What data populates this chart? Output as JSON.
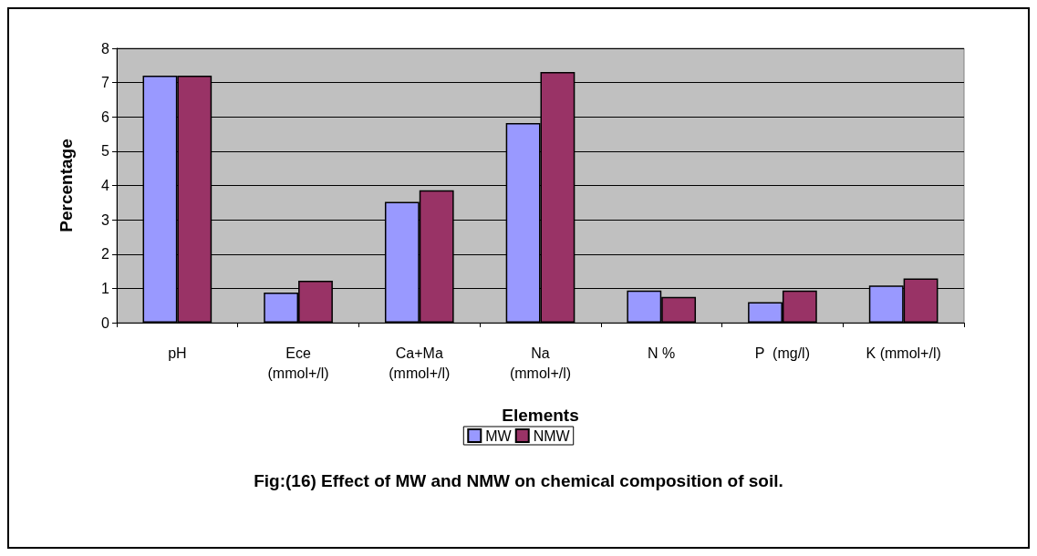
{
  "chart_data": {
    "type": "bar",
    "title": "Fig:(16) Effect of MW and NMW on chemical composition of soil.",
    "xlabel": "Elements",
    "ylabel": "Percentage",
    "categories": [
      "pH",
      "Ece\n(mmol+/l)",
      "Ca+Ma\n(mmol+/l)",
      "Na\n(mmol+/l)",
      "N %",
      "P  (mg/l)",
      "K (mmol+/l)"
    ],
    "series": [
      {
        "name": "MW",
        "color": "#9999ff",
        "values": [
          7.2,
          0.88,
          3.52,
          5.82,
          0.94,
          0.6,
          1.08
        ]
      },
      {
        "name": "NMW",
        "color": "#993366",
        "values": [
          7.2,
          1.22,
          3.86,
          7.31,
          0.75,
          0.94,
          1.29
        ]
      }
    ],
    "ylim": [
      0,
      8
    ],
    "yticks": [
      0,
      1,
      2,
      3,
      4,
      5,
      6,
      7,
      8
    ],
    "grid": "y",
    "legend": "bottom"
  }
}
